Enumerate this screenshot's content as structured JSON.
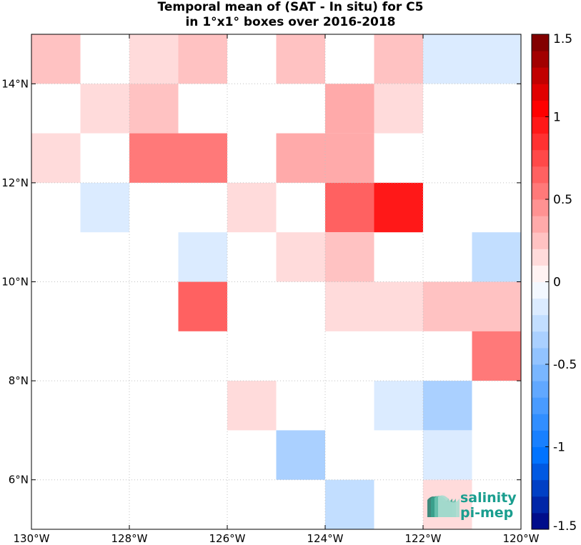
{
  "chart_data": {
    "type": "heatmap",
    "title_lines": [
      "Temporal mean of (SAT - In situ) for C5",
      "in 1°x1° boxes over 2016-2018"
    ],
    "x_range": [
      -130,
      -120
    ],
    "y_range": [
      5,
      15
    ],
    "x_ticks": [
      {
        "value": -130,
        "label": "130°W"
      },
      {
        "value": -128,
        "label": "128°W"
      },
      {
        "value": -126,
        "label": "126°W"
      },
      {
        "value": -124,
        "label": "124°W"
      },
      {
        "value": -122,
        "label": "122°W"
      },
      {
        "value": -120,
        "label": "120°W"
      }
    ],
    "y_ticks": [
      {
        "value": 6,
        "label": "6°N"
      },
      {
        "value": 8,
        "label": "8°N"
      },
      {
        "value": 10,
        "label": "10°N"
      },
      {
        "value": 12,
        "label": "12°N"
      },
      {
        "value": 14,
        "label": "14°N"
      }
    ],
    "grid": true,
    "colorbar": {
      "range": [
        -1.5,
        1.5
      ],
      "ticks": [
        {
          "value": 1.5,
          "label": "1.5"
        },
        {
          "value": 1,
          "label": "1"
        },
        {
          "value": 0.5,
          "label": "0.5"
        },
        {
          "value": 0,
          "label": "0"
        },
        {
          "value": -0.5,
          "label": "-0.5"
        },
        {
          "value": -1,
          "label": "-1"
        },
        {
          "value": -1.5,
          "label": "-1.5"
        }
      ]
    },
    "cells": [
      {
        "lon": -130,
        "lat": 14,
        "value": 0.28
      },
      {
        "lon": -128,
        "lat": 14,
        "value": 0.18
      },
      {
        "lon": -127,
        "lat": 14,
        "value": 0.28
      },
      {
        "lon": -125,
        "lat": 14,
        "value": 0.28
      },
      {
        "lon": -123,
        "lat": 14,
        "value": 0.28
      },
      {
        "lon": -122,
        "lat": 14,
        "value": -0.12
      },
      {
        "lon": -121,
        "lat": 14,
        "value": -0.12
      },
      {
        "lon": -129,
        "lat": 13,
        "value": 0.18
      },
      {
        "lon": -128,
        "lat": 13,
        "value": 0.28
      },
      {
        "lon": -124,
        "lat": 13,
        "value": 0.38
      },
      {
        "lon": -123,
        "lat": 13,
        "value": 0.18
      },
      {
        "lon": -130,
        "lat": 12,
        "value": 0.18
      },
      {
        "lon": -128,
        "lat": 12,
        "value": 0.58
      },
      {
        "lon": -127,
        "lat": 12,
        "value": 0.58
      },
      {
        "lon": -125,
        "lat": 12,
        "value": 0.38
      },
      {
        "lon": -124,
        "lat": 12,
        "value": 0.38
      },
      {
        "lon": -129,
        "lat": 11,
        "value": -0.12
      },
      {
        "lon": -126,
        "lat": 11,
        "value": 0.18
      },
      {
        "lon": -124,
        "lat": 11,
        "value": 0.68
      },
      {
        "lon": -123,
        "lat": 11,
        "value": 0.98
      },
      {
        "lon": -127,
        "lat": 10,
        "value": -0.12
      },
      {
        "lon": -125,
        "lat": 10,
        "value": 0.18
      },
      {
        "lon": -124,
        "lat": 10,
        "value": 0.28
      },
      {
        "lon": -121,
        "lat": 10,
        "value": -0.22
      },
      {
        "lon": -127,
        "lat": 9,
        "value": 0.68
      },
      {
        "lon": -124,
        "lat": 9,
        "value": 0.18
      },
      {
        "lon": -123,
        "lat": 9,
        "value": 0.18
      },
      {
        "lon": -122,
        "lat": 9,
        "value": 0.28
      },
      {
        "lon": -121,
        "lat": 9,
        "value": 0.28
      },
      {
        "lon": -121,
        "lat": 8,
        "value": 0.58
      },
      {
        "lon": -126,
        "lat": 7,
        "value": 0.18
      },
      {
        "lon": -123,
        "lat": 7,
        "value": -0.12
      },
      {
        "lon": -122,
        "lat": 7,
        "value": -0.32
      },
      {
        "lon": -125,
        "lat": 6,
        "value": -0.32
      },
      {
        "lon": -122,
        "lat": 6,
        "value": -0.12
      },
      {
        "lon": -124,
        "lat": 5,
        "value": -0.22
      },
      {
        "lon": -122,
        "lat": 5,
        "value": 0.18
      }
    ]
  },
  "logo": {
    "line1": "salinity",
    "line2": "pi-mep"
  },
  "colors": {
    "logo_text": "#1a9e8f",
    "grid": "#c0c0c0"
  }
}
